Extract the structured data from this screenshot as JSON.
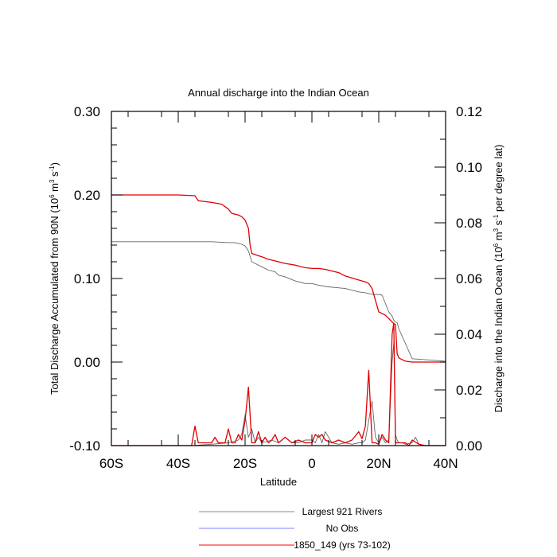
{
  "chart_data": {
    "type": "line",
    "title": "Annual discharge into the Indian Ocean",
    "xlabel": "Latitude",
    "ylabel_left_main": "Total Discharge Accumulated from 90N (10",
    "ylabel_left_exp1": "6",
    "ylabel_left_mid": " m",
    "ylabel_left_exp2": "3",
    "ylabel_left_mid2": " s",
    "ylabel_left_exp3": "-1",
    "ylabel_left_end": ")",
    "ylabel_right_main": "Discharge into the Indian Ocean (10",
    "ylabel_right_exp1": "6",
    "ylabel_right_mid": " m",
    "ylabel_right_exp2": "3",
    "ylabel_right_mid2": " s",
    "ylabel_right_exp3": "-1",
    "ylabel_right_end": " per degree lat)",
    "xlim": [
      -60,
      40
    ],
    "ylim_left": [
      -0.1,
      0.3
    ],
    "ylim_right": [
      0.0,
      0.12
    ],
    "x_ticks": [
      {
        "value": -60,
        "label": "60S"
      },
      {
        "value": -40,
        "label": "40S"
      },
      {
        "value": -20,
        "label": "20S"
      },
      {
        "value": 0,
        "label": "0"
      },
      {
        "value": 20,
        "label": "20N"
      },
      {
        "value": 40,
        "label": "40N"
      }
    ],
    "y_left_ticks": [
      {
        "value": 0.3,
        "label": "0.30"
      },
      {
        "value": 0.2,
        "label": "0.20"
      },
      {
        "value": 0.1,
        "label": "0.10"
      },
      {
        "value": 0.0,
        "label": "0.00"
      },
      {
        "value": -0.1,
        "label": "-0.10"
      }
    ],
    "y_right_ticks": [
      {
        "value": 0.12,
        "label": "0.12"
      },
      {
        "value": 0.1,
        "label": "0.10"
      },
      {
        "value": 0.08,
        "label": "0.08"
      },
      {
        "value": 0.06,
        "label": "0.06"
      },
      {
        "value": 0.04,
        "label": "0.04"
      },
      {
        "value": 0.02,
        "label": "0.02"
      },
      {
        "value": 0.0,
        "label": "0.00"
      }
    ],
    "legend_position": "bottom",
    "series": [
      {
        "name": "Largest 921 Rivers",
        "color": "#666666",
        "axis": "left",
        "x": [
          -60,
          -50,
          -40,
          -30,
          -25,
          -23,
          -22,
          -21,
          -20,
          -19,
          -18,
          -15,
          -13,
          -11,
          -10,
          -8,
          -5,
          -2,
          0,
          2,
          5,
          10,
          14,
          16,
          17,
          18,
          20,
          21,
          22,
          23,
          24,
          24.5,
          25,
          25.5,
          26,
          30,
          40
        ],
        "y": [
          0.144,
          0.144,
          0.144,
          0.144,
          0.143,
          0.143,
          0.142,
          0.141,
          0.139,
          0.133,
          0.12,
          0.114,
          0.11,
          0.108,
          0.104,
          0.102,
          0.097,
          0.094,
          0.094,
          0.092,
          0.09,
          0.088,
          0.084,
          0.083,
          0.082,
          0.081,
          0.081,
          0.08,
          0.07,
          0.06,
          0.055,
          0.05,
          0.048,
          0.047,
          0.04,
          0.004,
          0.001
        ]
      },
      {
        "name": "1850_149 (yrs 73-102)",
        "color": "#e00000",
        "axis": "left",
        "x": [
          -60,
          -50,
          -40,
          -35,
          -34,
          -30,
          -27,
          -25,
          -24,
          -22,
          -21,
          -20,
          -19,
          -18.5,
          -18,
          -15,
          -13,
          -12,
          -10,
          -8,
          -5,
          -2,
          0,
          2,
          4,
          6,
          8,
          10,
          15,
          16,
          17,
          18,
          20,
          21,
          22,
          23,
          24,
          24.5,
          25,
          25.5,
          26,
          27,
          28,
          30,
          40
        ],
        "y": [
          0.2,
          0.2,
          0.2,
          0.199,
          0.193,
          0.191,
          0.189,
          0.183,
          0.178,
          0.176,
          0.174,
          0.17,
          0.16,
          0.14,
          0.13,
          0.126,
          0.123,
          0.122,
          0.12,
          0.118,
          0.116,
          0.113,
          0.112,
          0.112,
          0.111,
          0.109,
          0.107,
          0.103,
          0.097,
          0.096,
          0.094,
          0.088,
          0.06,
          0.058,
          0.056,
          0.052,
          0.048,
          0.046,
          0.045,
          0.01,
          0.005,
          0.003,
          0.001,
          0.0,
          0.0
        ]
      },
      {
        "name": "Largest 921 Rivers (per degree)",
        "color": "#666666",
        "axis": "right",
        "x": [
          -60,
          -40,
          -36,
          -30,
          -25,
          -22,
          -21,
          -20,
          -19,
          -18,
          -17,
          -16,
          -15,
          -12,
          -10,
          -8,
          -6,
          -4,
          -2,
          0,
          1,
          2,
          3,
          4,
          6,
          8,
          10,
          12,
          14,
          15,
          16,
          17,
          18,
          19,
          20,
          21,
          22,
          23,
          24,
          24.5,
          25,
          25.5,
          26,
          27,
          28,
          30,
          31,
          32,
          33,
          40
        ],
        "y": [
          0,
          0,
          0,
          0.0005,
          0.001,
          0.002,
          0.004,
          0.011,
          0.003,
          0.006,
          0.001,
          0.003,
          0.001,
          0.002,
          0.001,
          0.003,
          0.001,
          0.001,
          0.002,
          0.002,
          0.001,
          0.004,
          0.001,
          0.005,
          0.001,
          0.0005,
          0.001,
          0.0005,
          0.001,
          0.001,
          0.002,
          0.009,
          0.016,
          0.003,
          0.001,
          0.003,
          0.001,
          0.002,
          0.03,
          0.037,
          0.004,
          0.002,
          0.001,
          0.001,
          0.0005,
          0.001,
          0.003,
          0.0005,
          0.0,
          0.0
        ]
      },
      {
        "name": "1850_149 (yrs 73-102) (per degree)",
        "color": "#e00000",
        "axis": "right",
        "x": [
          -60,
          -40,
          -36,
          -35,
          -34,
          -30,
          -29,
          -28,
          -26,
          -25,
          -24,
          -23,
          -22,
          -21,
          -20,
          -19,
          -18,
          -17,
          -16,
          -15,
          -14,
          -13,
          -12,
          -11,
          -10,
          -8,
          -6,
          -4,
          -2,
          0,
          1,
          2,
          3,
          4,
          6,
          8,
          10,
          12,
          14,
          15,
          16,
          17,
          18,
          19,
          20,
          21,
          22,
          23,
          24,
          24.5,
          25,
          25.5,
          26,
          27,
          28,
          29,
          30,
          32,
          34,
          40
        ],
        "y": [
          0,
          0,
          0,
          0.007,
          0.001,
          0.001,
          0.003,
          0.001,
          0.001,
          0.006,
          0.001,
          0.001,
          0.004,
          0.002,
          0.009,
          0.021,
          0.001,
          0.001,
          0.005,
          0.001,
          0.003,
          0.001,
          0.002,
          0.004,
          0.001,
          0.003,
          0.001,
          0.002,
          0.001,
          0.001,
          0.004,
          0.003,
          0.004,
          0.002,
          0.001,
          0.002,
          0.001,
          0.002,
          0.005,
          0.0025,
          0.007,
          0.027,
          0.001,
          0.001,
          0.0005,
          0.004,
          0.002,
          0.001,
          0.04,
          0.044,
          0.001,
          0.001,
          0.001,
          0.001,
          0.001,
          0.0,
          0.002,
          0.0005,
          0.0,
          0.0
        ]
      }
    ],
    "legend": [
      {
        "label": "Largest 921 Rivers",
        "color": "#888888"
      },
      {
        "label": "No Obs",
        "color": "#7f7fff"
      },
      {
        "label": "1850_149 (yrs 73-102)",
        "color": "#ff0000"
      }
    ]
  }
}
